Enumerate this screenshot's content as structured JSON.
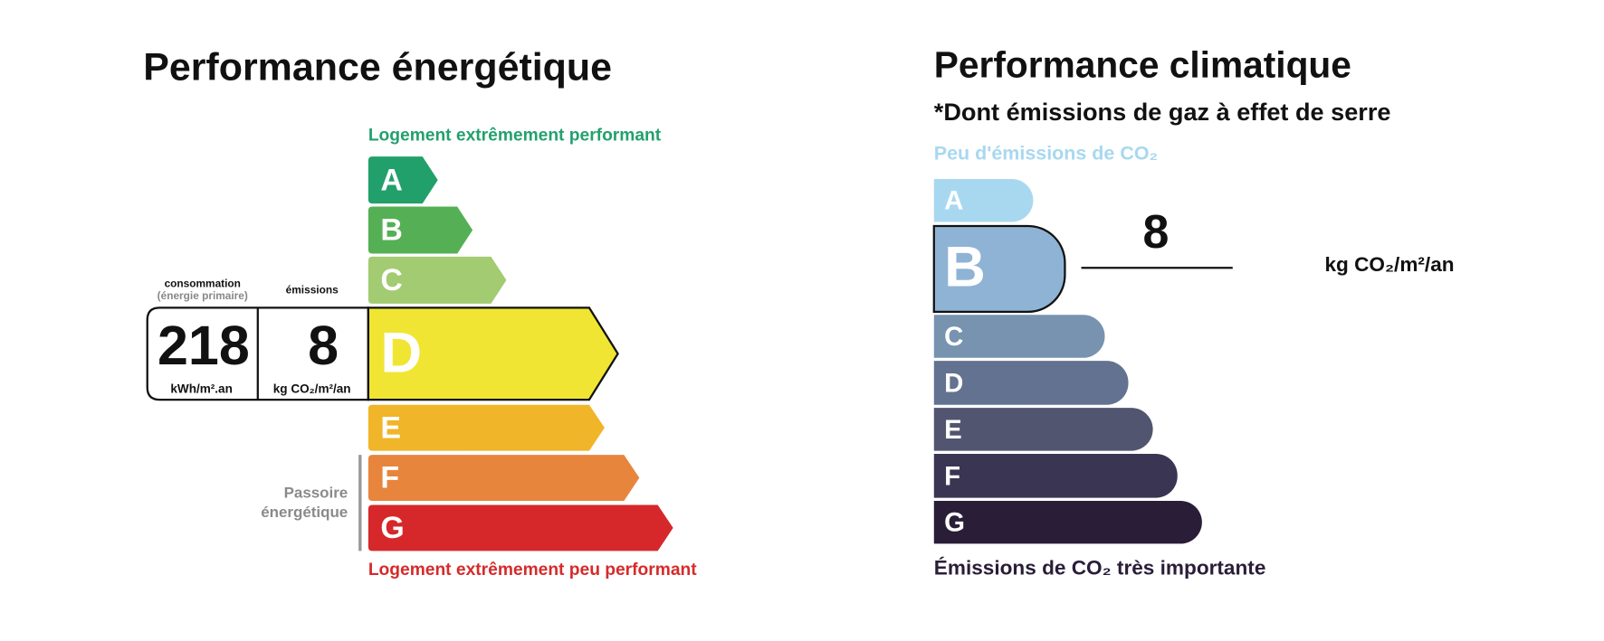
{
  "energy": {
    "title": "Performance énergétique",
    "top_label": "Logement extrêmement performant",
    "bottom_label": "Logement extrêmement peu performant",
    "classes": [
      "A",
      "B",
      "C",
      "D",
      "E",
      "F",
      "G"
    ],
    "current_class": "D",
    "consumption": {
      "label": "consommation",
      "sublabel": "(énergie primaire)",
      "value": 218,
      "unit": "kWh/m².an"
    },
    "emissions": {
      "label": "émissions",
      "value": 8,
      "unit": "kg CO₂/m²/an"
    },
    "passoire": [
      "Passoire",
      "énergétique"
    ]
  },
  "climate": {
    "title": "Performance climatique",
    "subtitle": "*Dont émissions de gaz à effet de serre",
    "top_label": "Peu d'émissions de CO₂",
    "bottom_label": "Émissions de CO₂ très importante",
    "classes": [
      "A",
      "B",
      "C",
      "D",
      "E",
      "F",
      "G"
    ],
    "current_class": "B",
    "value": 8,
    "unit": "kg CO₂/m²/an"
  }
}
